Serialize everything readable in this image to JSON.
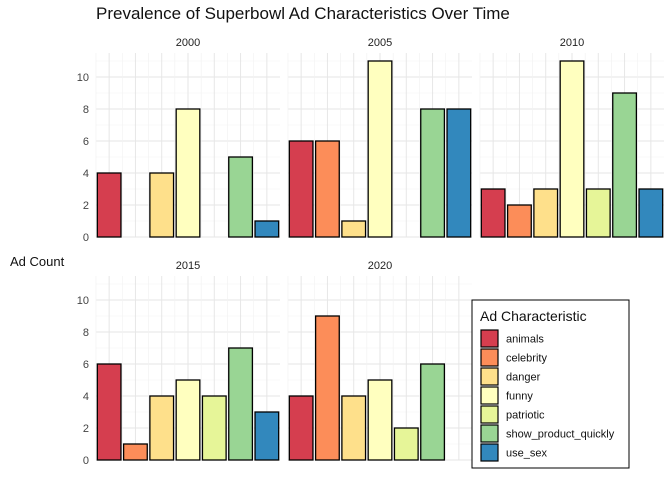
{
  "chart_data": {
    "type": "bar",
    "title": "Prevalence of Superbowl Ad Characteristics Over Time",
    "xlabel": "",
    "ylabel": "Ad Count",
    "ylim": [
      0,
      11.5
    ],
    "yticks": [
      0,
      2,
      4,
      6,
      8,
      10
    ],
    "categories": [
      "animals",
      "celebrity",
      "danger",
      "funny",
      "patriotic",
      "show_product_quickly",
      "use_sex"
    ],
    "colors": {
      "animals": "#D53E4F",
      "celebrity": "#FC8D59",
      "danger": "#FEE08B",
      "funny": "#FFFFBF",
      "patriotic": "#E6F598",
      "show_product_quickly": "#99D594",
      "use_sex": "#3288BD"
    },
    "grid": true,
    "legend": {
      "title": "Ad Characteristic",
      "placement": "bottom-right",
      "entries": [
        "animals",
        "celebrity",
        "danger",
        "funny",
        "patriotic",
        "show_product_quickly",
        "use_sex"
      ]
    },
    "facets": [
      {
        "label": "2000",
        "values": [
          4,
          0,
          4,
          8,
          0,
          5,
          1
        ]
      },
      {
        "label": "2005",
        "values": [
          6,
          6,
          1,
          11,
          0,
          8,
          8
        ]
      },
      {
        "label": "2010",
        "values": [
          3,
          2,
          3,
          11,
          3,
          9,
          3
        ]
      },
      {
        "label": "2015",
        "values": [
          6,
          1,
          4,
          5,
          4,
          7,
          3
        ]
      },
      {
        "label": "2020",
        "values": [
          4,
          9,
          4,
          5,
          2,
          6,
          0
        ]
      }
    ]
  }
}
